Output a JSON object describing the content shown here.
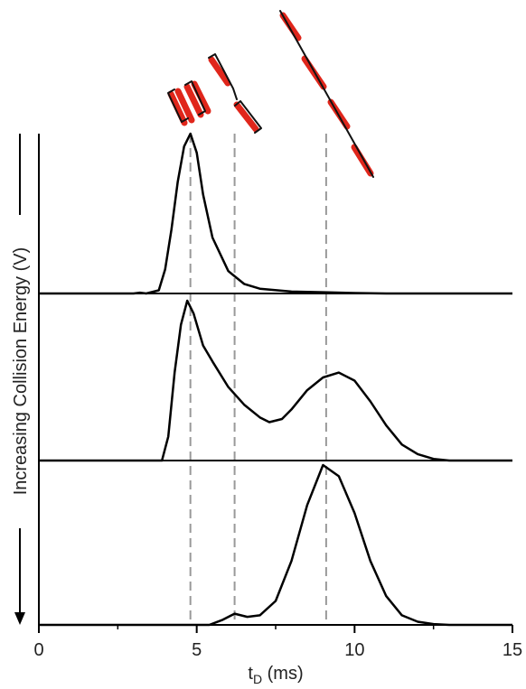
{
  "chart_data": {
    "type": "line",
    "y_label": "Increasing Collision Energy (V)",
    "x_label": {
      "main": "t",
      "sub": "D",
      "unit": "(ms)"
    },
    "xlim": [
      0,
      15
    ],
    "xticks": [
      0,
      5,
      10,
      15
    ],
    "xminorticks": [
      2.5,
      7.5,
      12.5
    ],
    "ylim": [
      0,
      100
    ],
    "reference_lines": [
      4.8,
      6.2,
      9.1
    ],
    "series": [
      {
        "color": "#000000",
        "x": [
          0,
          3.0,
          3.2,
          3.4,
          3.8,
          4.0,
          4.2,
          4.4,
          4.6,
          4.8,
          5.0,
          5.2,
          5.5,
          6.0,
          6.5,
          7.0,
          8.0,
          9.0,
          10.0,
          11.0,
          15.0
        ],
        "values": [
          0,
          0,
          0.5,
          0,
          2,
          15,
          40,
          70,
          92,
          100,
          88,
          62,
          35,
          14,
          6,
          3,
          1.2,
          0.8,
          0.3,
          0,
          0
        ]
      },
      {
        "color": "#000000",
        "x": [
          0,
          3.9,
          4.1,
          4.3,
          4.5,
          4.7,
          4.9,
          5.2,
          5.5,
          6.0,
          6.5,
          7.0,
          7.3,
          7.7,
          8.0,
          8.5,
          9.0,
          9.5,
          10.0,
          10.5,
          11.0,
          11.5,
          12.0,
          12.5,
          13.0,
          15.0
        ],
        "values": [
          0,
          0,
          15,
          55,
          85,
          100,
          92,
          72,
          62,
          46,
          35,
          27,
          24,
          26,
          32,
          44,
          52,
          55,
          50,
          37,
          22,
          10,
          4,
          1,
          0,
          0
        ]
      },
      {
        "color": "#000000",
        "x": [
          0,
          5.4,
          5.8,
          6.2,
          6.6,
          7.0,
          7.5,
          8.0,
          8.5,
          9.0,
          9.5,
          10.0,
          10.5,
          11.0,
          11.5,
          12.0,
          12.5,
          13.0,
          15.0
        ],
        "values": [
          0,
          0,
          3,
          7,
          5,
          6,
          15,
          40,
          75,
          100,
          93,
          70,
          40,
          18,
          6,
          2,
          0.5,
          0,
          0
        ]
      }
    ]
  }
}
